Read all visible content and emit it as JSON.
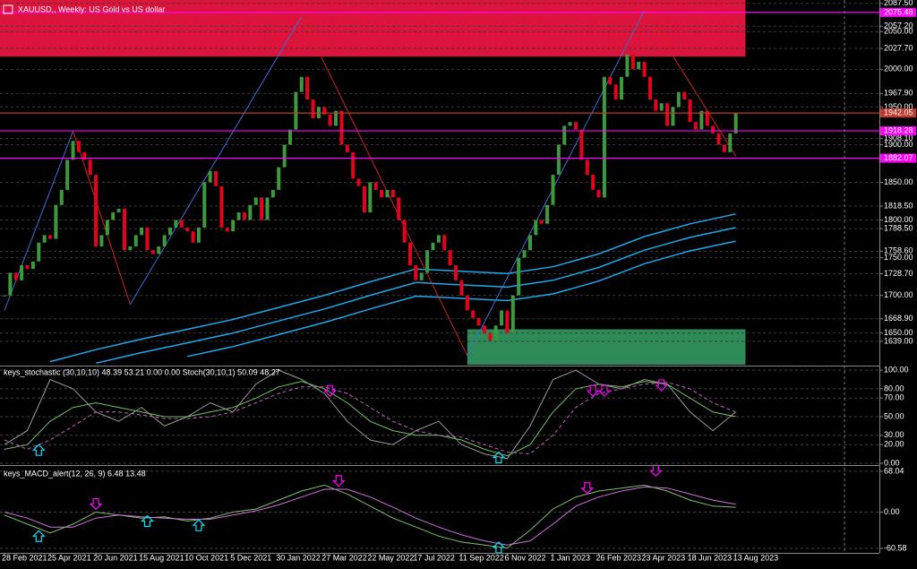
{
  "header": {
    "title": "XAUUSD,, Weekly:  US Gold vs US dollar"
  },
  "chart_data": [
    {
      "type": "candlestick",
      "closes": [
        1700,
        1730,
        1720,
        1740,
        1735,
        1745,
        1770,
        1780,
        1775,
        1820,
        1840,
        1880,
        1905,
        1890,
        1880,
        1860,
        1765,
        1780,
        1800,
        1810,
        1815,
        1760,
        1765,
        1780,
        1790,
        1760,
        1755,
        1765,
        1780,
        1790,
        1800,
        1790,
        1785,
        1770,
        1790,
        1850,
        1865,
        1845,
        1790,
        1785,
        1800,
        1810,
        1800,
        1820,
        1830,
        1800,
        1830,
        1840,
        1870,
        1900,
        1920,
        1970,
        1990,
        1960,
        1935,
        1950,
        1940,
        1925,
        1945,
        1900,
        1890,
        1855,
        1845,
        1810,
        1850,
        1840,
        1830,
        1840,
        1830,
        1800,
        1770,
        1740,
        1720,
        1730,
        1760,
        1770,
        1780,
        1760,
        1740,
        1720,
        1700,
        1680,
        1670,
        1660,
        1650,
        1640,
        1660,
        1680,
        1650,
        1700,
        1750,
        1760,
        1780,
        1800,
        1795,
        1820,
        1860,
        1900,
        1925,
        1930,
        1920,
        1880,
        1860,
        1840,
        1830,
        1990,
        1980,
        1960,
        1990,
        2020,
        2000,
        2010,
        1990,
        1960,
        1945,
        1955,
        1925,
        1950,
        1970,
        1960,
        1930,
        1920,
        1945,
        1925,
        1915,
        1900,
        1890,
        1915,
        1942
      ],
      "up_color": "#3c9a3c",
      "down_color": "#e8001c",
      "ylim": [
        1608,
        2092
      ],
      "yticks": [
        {
          "value": 2087.5,
          "label": "2087.50"
        },
        {
          "value": 2057.2,
          "label": "2057.20"
        },
        {
          "value": 2050,
          "label": "2050.00"
        },
        {
          "value": 2027.7,
          "label": "2027.70"
        },
        {
          "value": 2000,
          "label": "2000.00"
        },
        {
          "value": 1967.9,
          "label": "1967.90"
        },
        {
          "value": 1950,
          "label": "1950.00"
        },
        {
          "value": 1908.1,
          "label": "1908.10"
        },
        {
          "value": 1900,
          "label": "1900.00"
        },
        {
          "value": 1850,
          "label": "1850.00"
        },
        {
          "value": 1818.5,
          "label": "1818.50"
        },
        {
          "value": 1800,
          "label": "1800.00"
        },
        {
          "value": 1788.5,
          "label": "1788.50"
        },
        {
          "value": 1758.6,
          "label": "1758.60"
        },
        {
          "value": 1750,
          "label": "1750.00"
        },
        {
          "value": 1728.7,
          "label": "1728.70"
        },
        {
          "value": 1700,
          "label": "1700.00"
        },
        {
          "value": 1668.9,
          "label": "1668.90"
        },
        {
          "value": 1650,
          "label": "1650.00"
        },
        {
          "value": 1639,
          "label": "1639.00"
        }
      ],
      "xticks": [
        {
          "value": 0,
          "label": "28 Feb 2021"
        },
        {
          "value": 8,
          "label": "25 Apr 2021"
        },
        {
          "value": 16,
          "label": "20 Jun 2021"
        },
        {
          "value": 24,
          "label": "15 Aug 2021"
        },
        {
          "value": 32,
          "label": "10 Oct 2021"
        },
        {
          "value": 40,
          "label": "5 Dec 2021"
        },
        {
          "value": 48,
          "label": "30 Jan 2022"
        },
        {
          "value": 56,
          "label": "27 Mar 2022"
        },
        {
          "value": 64,
          "label": "22 May 2022"
        },
        {
          "value": 72,
          "label": "17 Jul 2022"
        },
        {
          "value": 80,
          "label": "11 Sep 2022"
        },
        {
          "value": 88,
          "label": "6 Nov 2022"
        },
        {
          "value": 96,
          "label": "1 Jan 2023"
        },
        {
          "value": 104,
          "label": "26 Feb 2023"
        },
        {
          "value": 112,
          "label": "23 Apr 2023"
        },
        {
          "value": 120,
          "label": "18 Jun 2023"
        },
        {
          "value": 128,
          "label": "13 Aug 2023"
        }
      ],
      "grid": true,
      "zones": [
        {
          "from": 2017,
          "to": 2092,
          "x_from": -1,
          "x_to": 129.7,
          "color": "#dc143c"
        },
        {
          "from": 1608,
          "to": 1655,
          "x_from": 81,
          "x_to": 129.7,
          "color": "#2e8b57"
        }
      ],
      "levels": [
        {
          "value": 2075.48,
          "label": "2075.48",
          "color": "#ff00ff"
        },
        {
          "value": 1942.05,
          "label": "1942.05",
          "color": "#c0392b"
        },
        {
          "value": 1918.28,
          "label": "1918.28",
          "color": "#ff00ff"
        },
        {
          "value": 1882.07,
          "label": "1882.07",
          "color": "#ff00ff"
        }
      ],
      "zigzag": {
        "x": [
          0,
          12,
          22,
          52,
          81,
          112,
          128
        ],
        "values": [
          1680,
          1918,
          1688,
          2070,
          1620,
          2078,
          1885
        ],
        "up_color": "#3a6fd8",
        "down_color": "#d02020"
      },
      "envelope_x": [
        0,
        8,
        16,
        24,
        32,
        40,
        48,
        56,
        64,
        72,
        80,
        88,
        96,
        104,
        112,
        120,
        128
      ],
      "envelopes": [
        {
          "color": "#1fa8e8",
          "values": [
            null,
            1612,
            1628,
            1642,
            1655,
            1668,
            1684,
            1700,
            1718,
            1735,
            1732,
            1729,
            1738,
            1755,
            1778,
            1795,
            1808
          ]
        },
        {
          "color": "#1fa8e8",
          "values": [
            null,
            null,
            1610,
            1624,
            1637,
            1650,
            1666,
            1682,
            1700,
            1717,
            1714,
            1711,
            1720,
            1737,
            1760,
            1777,
            1790
          ]
        },
        {
          "color": "#1fa8e8",
          "values": [
            null,
            null,
            null,
            null,
            1619,
            1632,
            1648,
            1664,
            1682,
            1699,
            1696,
            1693,
            1702,
            1719,
            1742,
            1759,
            1772
          ]
        }
      ]
    },
    {
      "type": "oscillator",
      "title": "keys_stochastic (30,10,10) 48.39 53.21 0.00 0.00 Stoch(30,10,1) 50.09 48.27",
      "x": [
        0,
        4,
        8,
        12,
        16,
        20,
        24,
        28,
        32,
        36,
        40,
        44,
        48,
        52,
        56,
        60,
        64,
        68,
        72,
        76,
        80,
        84,
        88,
        92,
        96,
        100,
        104,
        108,
        112,
        116,
        120,
        124,
        128
      ],
      "lines": [
        {
          "color": "#9a9a9a",
          "dashed": false,
          "values": [
            20,
            35,
            90,
            80,
            55,
            45,
            60,
            40,
            50,
            65,
            55,
            85,
            100,
            90,
            75,
            45,
            25,
            20,
            35,
            45,
            20,
            10,
            5,
            40,
            90,
            100,
            85,
            80,
            90,
            85,
            55,
            35,
            55
          ]
        },
        {
          "color": "#74c064",
          "dashed": false,
          "values": [
            15,
            20,
            45,
            60,
            65,
            60,
            55,
            50,
            50,
            55,
            60,
            70,
            82,
            88,
            80,
            65,
            45,
            35,
            30,
            30,
            25,
            15,
            8,
            20,
            55,
            80,
            85,
            82,
            88,
            85,
            70,
            55,
            50
          ]
        },
        {
          "color": "#c060c0",
          "dashed": true,
          "values": [
            25,
            15,
            25,
            40,
            55,
            55,
            52,
            48,
            48,
            50,
            55,
            65,
            75,
            82,
            82,
            75,
            60,
            45,
            35,
            30,
            28,
            20,
            12,
            10,
            30,
            60,
            75,
            80,
            85,
            87,
            80,
            65,
            55
          ]
        }
      ],
      "ylim": [
        -1,
        103
      ],
      "yticks": [
        {
          "value": 100,
          "label": "100.00"
        },
        {
          "value": 80,
          "label": "80.00"
        },
        {
          "value": 70,
          "label": "70.00"
        },
        {
          "value": 50,
          "label": "50.00"
        },
        {
          "value": 30,
          "label": "30.00"
        },
        {
          "value": 20,
          "label": "20.00"
        },
        {
          "value": 0,
          "label": "0.00"
        }
      ],
      "signals": [
        {
          "x": 6,
          "value": 20,
          "direction": "up"
        },
        {
          "x": 86.5,
          "value": 12,
          "direction": "up"
        },
        {
          "x": 57,
          "value": 72,
          "direction": "down"
        },
        {
          "x": 103,
          "value": 72,
          "direction": "down"
        },
        {
          "x": 105,
          "value": 72,
          "direction": "down"
        },
        {
          "x": 115,
          "value": 78,
          "direction": "down"
        }
      ],
      "up_color": "#00e5ff",
      "down_color": "#ff00ff"
    },
    {
      "type": "oscillator",
      "title": "keys_MACD_alert(12, 26, 9) 6.48 13.48",
      "x": [
        0,
        4,
        8,
        12,
        16,
        20,
        24,
        28,
        32,
        36,
        40,
        44,
        48,
        52,
        56,
        60,
        64,
        68,
        72,
        76,
        80,
        84,
        88,
        92,
        96,
        100,
        104,
        108,
        112,
        116,
        120,
        124,
        128
      ],
      "lines": [
        {
          "color": "#7fc06a",
          "dashed": false,
          "values": [
            -5,
            -20,
            -35,
            -20,
            0,
            -5,
            -10,
            -8,
            -15,
            -10,
            0,
            5,
            20,
            35,
            45,
            30,
            10,
            -10,
            -25,
            -40,
            -50,
            -55,
            -60,
            -30,
            5,
            25,
            35,
            40,
            45,
            35,
            20,
            10,
            8
          ]
        },
        {
          "color": "#d070e0",
          "dashed": false,
          "values": [
            0,
            -10,
            -25,
            -25,
            -10,
            -5,
            -8,
            -10,
            -12,
            -12,
            -5,
            2,
            12,
            25,
            38,
            38,
            25,
            8,
            -10,
            -25,
            -38,
            -48,
            -55,
            -48,
            -20,
            10,
            25,
            35,
            42,
            40,
            30,
            20,
            13
          ]
        }
      ],
      "ylim": [
        -68,
        75.4
      ],
      "yticks": [
        {
          "value": 68.04,
          "label": "68.04"
        },
        {
          "value": 0,
          "label": "0.00"
        },
        {
          "value": -60.58,
          "label": "-60.58"
        }
      ],
      "signals": [
        {
          "x": 6,
          "value": -31,
          "direction": "up"
        },
        {
          "x": 25,
          "value": -6,
          "direction": "up"
        },
        {
          "x": 34,
          "value": -13,
          "direction": "up"
        },
        {
          "x": 86.5,
          "value": -50,
          "direction": "up"
        },
        {
          "x": 16,
          "value": 4.5,
          "direction": "down"
        },
        {
          "x": 58.5,
          "value": 43,
          "direction": "down"
        },
        {
          "x": 102,
          "value": 31,
          "direction": "down"
        },
        {
          "x": 114,
          "value": 60,
          "direction": "down"
        }
      ],
      "up_color": "#00e5ff",
      "down_color": "#ff00ff"
    }
  ]
}
